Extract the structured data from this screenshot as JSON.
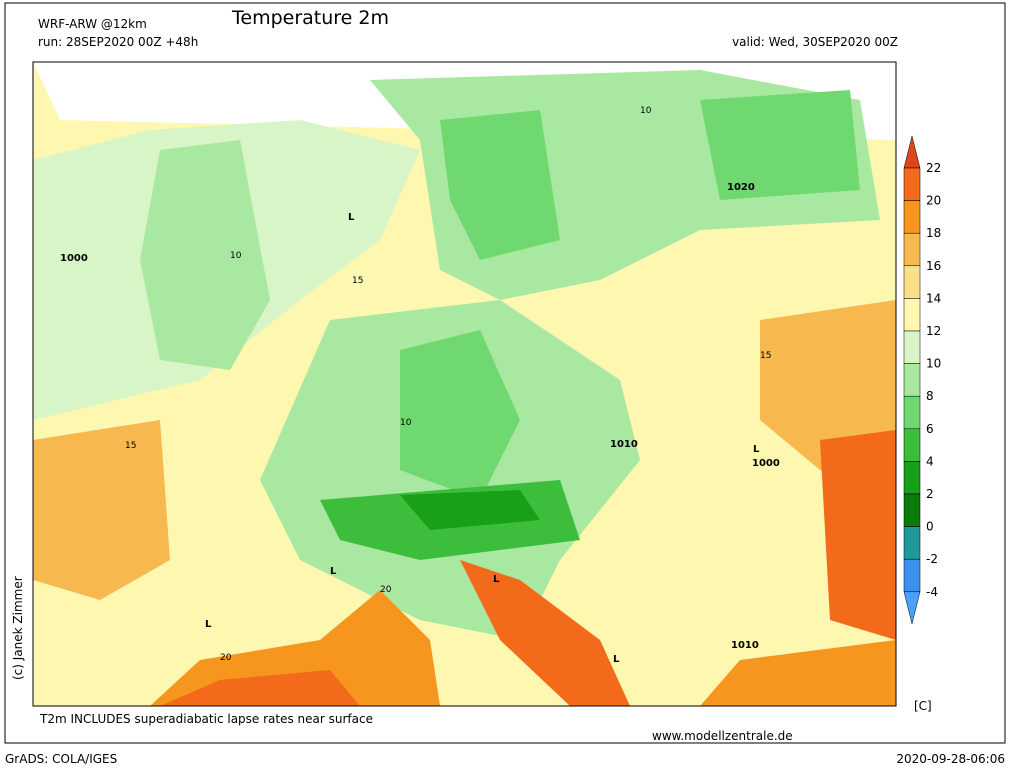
{
  "header": {
    "model": "WRF-ARW @12km",
    "title": "Temperature 2m",
    "run": "run: 28SEP2020 00Z +48h",
    "valid": "valid: Wed, 30SEP2020 00Z"
  },
  "map_labels": {
    "lows": [
      "L",
      "L",
      "L",
      "L",
      "L",
      "L"
    ],
    "isobars": [
      "1000",
      "1010",
      "1020",
      "1010",
      "1000"
    ],
    "isotherms": [
      "10",
      "15",
      "20",
      "10",
      "15",
      "20",
      "10",
      "15"
    ]
  },
  "colorbar": {
    "levels": [
      22,
      20,
      18,
      16,
      14,
      12,
      10,
      8,
      6,
      4,
      2,
      0,
      -2,
      -4
    ],
    "colors": [
      "#e0461e",
      "#f26a1a",
      "#f6961e",
      "#f8b850",
      "#fbe08a",
      "#fdf7b0",
      "#d8f5c8",
      "#a8e8a0",
      "#70d870",
      "#3cbe3c",
      "#18a018",
      "#0a7a0a",
      "#1e9a9a",
      "#3c90f0",
      "#4aa0ff"
    ],
    "unit": "[C]"
  },
  "footer": {
    "note": "T2m INCLUDES superadiabatic lapse rates near surface",
    "site": "www.modellzentrale.de",
    "software": "GrADS: COLA/IGES",
    "timestamp": "2020-09-28-06:06",
    "copyright": "(c) Janek Zimmer"
  }
}
